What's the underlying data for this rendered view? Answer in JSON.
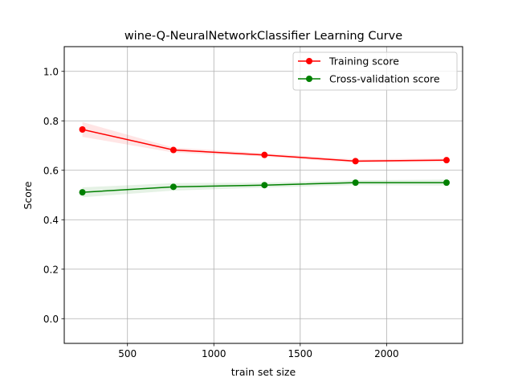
{
  "chart_data": {
    "type": "line",
    "title": "wine-Q-NeuralNetworkClassifier Learning Curve",
    "xlabel": "train set size",
    "ylabel": "Score",
    "xlim": [
      134,
      2440
    ],
    "ylim": [
      -0.1,
      1.1
    ],
    "xticks": [
      500,
      1000,
      1500,
      2000
    ],
    "yticks": [
      0.0,
      0.2,
      0.4,
      0.6,
      0.8,
      1.0
    ],
    "xtick_labels": [
      "500",
      "1000",
      "1500",
      "2000"
    ],
    "ytick_labels": [
      "0.0",
      "0.2",
      "0.4",
      "0.6",
      "0.8",
      "1.0"
    ],
    "grid": true,
    "legend_position": "top-right",
    "x": [
      239,
      766,
      1293,
      1820,
      2347
    ],
    "series": [
      {
        "name": "Training score",
        "color": "#ff0000",
        "values": [
          0.765,
          0.682,
          0.662,
          0.637,
          0.641
        ],
        "band_lower": [
          0.735,
          0.672,
          0.655,
          0.63,
          0.634
        ],
        "band_upper": [
          0.795,
          0.692,
          0.669,
          0.644,
          0.648
        ]
      },
      {
        "name": "Cross-validation score",
        "color": "#008000",
        "values": [
          0.511,
          0.533,
          0.54,
          0.55,
          0.55
        ],
        "band_lower": [
          0.491,
          0.518,
          0.53,
          0.54,
          0.538
        ],
        "band_upper": [
          0.531,
          0.548,
          0.55,
          0.56,
          0.562
        ]
      }
    ]
  }
}
